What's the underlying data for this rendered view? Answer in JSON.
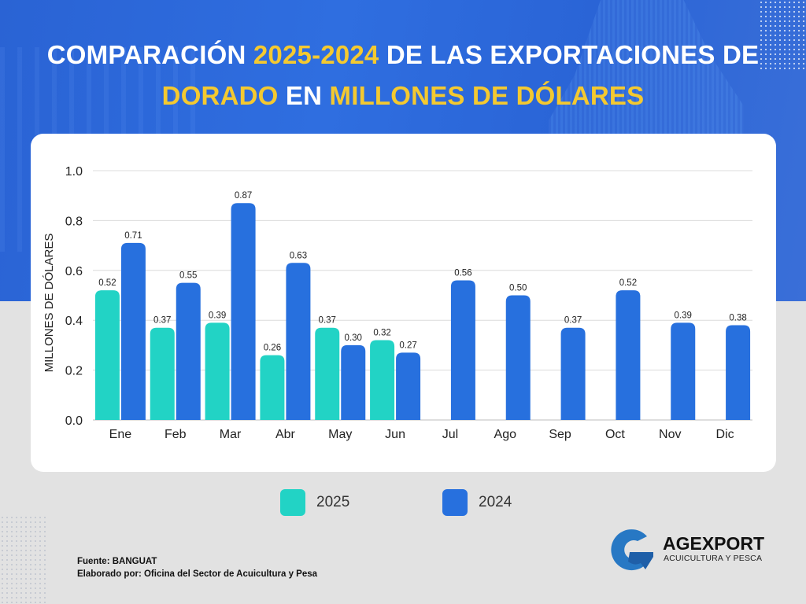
{
  "header": {
    "title_line1": [
      {
        "text": "COMPARACIÓN ",
        "highlight": false
      },
      {
        "text": "2025-2024",
        "highlight": true
      },
      {
        "text": " DE LAS EXPORTACIONES DE",
        "highlight": false
      }
    ],
    "title_line2": [
      {
        "text": "DORADO",
        "highlight": true
      },
      {
        "text": " EN ",
        "highlight": false
      },
      {
        "text": "MILLONES DE DÓLARES",
        "highlight": true
      }
    ]
  },
  "colors": {
    "series_2025": "#22d3c5",
    "series_2024": "#2770de",
    "title_highlight": "#f4c930",
    "background_blue": "#2c67d9"
  },
  "chart_data": {
    "type": "bar",
    "title": "COMPARACIÓN 2025-2024 DE LAS EXPORTACIONES DE DORADO EN MILLONES DE DÓLARES",
    "xlabel": "",
    "ylabel": "MILLONES DE DÓLARES",
    "ylim": [
      0,
      1.0
    ],
    "yticks": [
      "0.0",
      "0.2",
      "0.4",
      "0.6",
      "0.8",
      "1.0"
    ],
    "grid": true,
    "legend_position": "bottom",
    "categories": [
      "Ene",
      "Feb",
      "Mar",
      "Abr",
      "May",
      "Jun",
      "Jul",
      "Ago",
      "Sep",
      "Oct",
      "Nov",
      "Dic"
    ],
    "series": [
      {
        "name": "2025",
        "values": [
          0.52,
          0.37,
          0.39,
          0.26,
          0.37,
          0.32,
          null,
          null,
          null,
          null,
          null,
          null
        ]
      },
      {
        "name": "2024",
        "values": [
          0.71,
          0.55,
          0.87,
          0.63,
          0.3,
          0.27,
          0.56,
          0.5,
          0.37,
          0.52,
          0.39,
          0.38
        ]
      }
    ]
  },
  "legend": [
    {
      "label": "2025"
    },
    {
      "label": "2024"
    }
  ],
  "footer": {
    "source": "Fuente:  BANGUAT",
    "prepared_by": "Elaborado por:  Oficina del Sector de Acuicultura y Pesa"
  },
  "logo": {
    "name": "AGEXPORT",
    "subtitle": "ACUICULTURA Y PESCA"
  }
}
